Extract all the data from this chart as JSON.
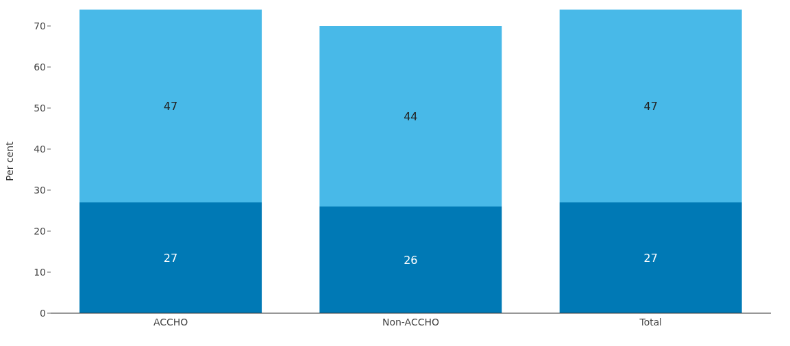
{
  "chart_data": {
    "type": "bar",
    "stacked": true,
    "ylabel": "Per cent",
    "categories": [
      "ACCHO",
      "Non-ACCHO",
      "Total"
    ],
    "series": [
      {
        "color": "#0079b5",
        "values": [
          27,
          26,
          27
        ]
      },
      {
        "color": "#48b9e8",
        "values": [
          47,
          44,
          47
        ]
      }
    ],
    "ylim": [
      0,
      74
    ],
    "yticks": [
      0,
      10,
      20,
      30,
      40,
      50,
      60,
      70
    ],
    "data_labels": true,
    "grid": false,
    "legend": false
  }
}
